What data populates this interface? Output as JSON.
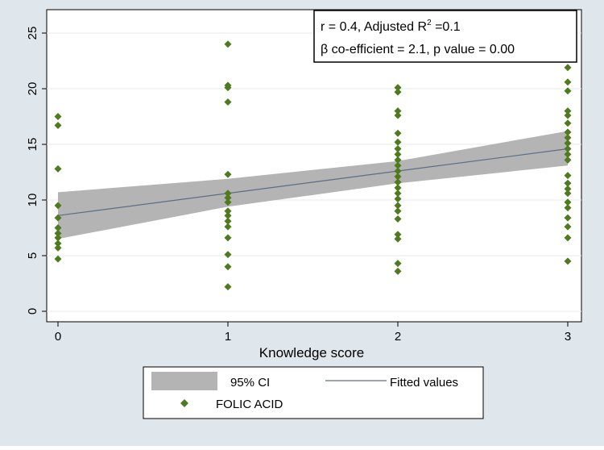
{
  "chart_data": {
    "type": "scatter",
    "title": "",
    "xlabel": "Knowledge score",
    "ylabel": "",
    "xlim": [
      0,
      3
    ],
    "ylim": [
      0,
      25
    ],
    "x_ticks": [
      0,
      1,
      2,
      3
    ],
    "y_ticks": [
      0,
      5,
      10,
      15,
      20,
      25
    ],
    "grid": true,
    "colors": {
      "points": "#4f7a1e",
      "fit_line": "#5b6e82",
      "ci_band": "#b4b4b4",
      "background": "#dfe6ec",
      "plot_area": "#ffffff"
    },
    "annotation": {
      "line1_prefix": "r = 0.4, Adjusted R",
      "line1_sup": "2",
      "line1_suffix": " =0.1",
      "line2": "β co-efficient = 2.1, p value = 0.00"
    },
    "fitted": {
      "x": [
        0,
        3
      ],
      "y": [
        8.6,
        14.6
      ]
    },
    "ci": {
      "x": [
        0,
        1,
        2,
        3
      ],
      "lower": [
        6.5,
        9.4,
        11.5,
        13.1
      ],
      "upper": [
        10.7,
        11.9,
        13.5,
        16.2
      ]
    },
    "legend": {
      "position": "bottom",
      "items": [
        {
          "label": "95% CI",
          "kind": "band"
        },
        {
          "label": "Fitted values",
          "kind": "line"
        },
        {
          "label": "FOLIC ACID",
          "kind": "marker"
        }
      ]
    },
    "series": [
      {
        "name": "FOLIC ACID",
        "points": [
          [
            0,
            17.5
          ],
          [
            0,
            16.7
          ],
          [
            0,
            12.8
          ],
          [
            0,
            9.5
          ],
          [
            0,
            8.4
          ],
          [
            0,
            7.5
          ],
          [
            0,
            7.0
          ],
          [
            0,
            6.6
          ],
          [
            0,
            6.1
          ],
          [
            0,
            5.7
          ],
          [
            0,
            4.7
          ],
          [
            1,
            24.0
          ],
          [
            1,
            20.3
          ],
          [
            1,
            20.1
          ],
          [
            1,
            18.8
          ],
          [
            1,
            12.3
          ],
          [
            1,
            10.6
          ],
          [
            1,
            10.2
          ],
          [
            1,
            9.8
          ],
          [
            1,
            9.0
          ],
          [
            1,
            8.6
          ],
          [
            1,
            8.1
          ],
          [
            1,
            7.6
          ],
          [
            1,
            6.6
          ],
          [
            1,
            5.1
          ],
          [
            1,
            4.0
          ],
          [
            1,
            2.2
          ],
          [
            2,
            20.1
          ],
          [
            2,
            19.7
          ],
          [
            2,
            18.0
          ],
          [
            2,
            17.6
          ],
          [
            2,
            16.0
          ],
          [
            2,
            15.2
          ],
          [
            2,
            14.6
          ],
          [
            2,
            14.1
          ],
          [
            2,
            13.6
          ],
          [
            2,
            13.1
          ],
          [
            2,
            12.6
          ],
          [
            2,
            12.1
          ],
          [
            2,
            11.6
          ],
          [
            2,
            11.1
          ],
          [
            2,
            10.6
          ],
          [
            2,
            10.1
          ],
          [
            2,
            9.5
          ],
          [
            2,
            9.0
          ],
          [
            2,
            8.3
          ],
          [
            2,
            6.9
          ],
          [
            2,
            6.5
          ],
          [
            2,
            4.3
          ],
          [
            2,
            3.6
          ],
          [
            3,
            21.9
          ],
          [
            3,
            20.6
          ],
          [
            3,
            19.8
          ],
          [
            3,
            18.0
          ],
          [
            3,
            17.6
          ],
          [
            3,
            16.9
          ],
          [
            3,
            16.1
          ],
          [
            3,
            15.6
          ],
          [
            3,
            15.1
          ],
          [
            3,
            14.6
          ],
          [
            3,
            14.1
          ],
          [
            3,
            13.6
          ],
          [
            3,
            12.2
          ],
          [
            3,
            11.5
          ],
          [
            3,
            11.0
          ],
          [
            3,
            10.6
          ],
          [
            3,
            9.8
          ],
          [
            3,
            9.3
          ],
          [
            3,
            8.4
          ],
          [
            3,
            7.6
          ],
          [
            3,
            6.6
          ],
          [
            3,
            4.5
          ]
        ]
      }
    ]
  }
}
